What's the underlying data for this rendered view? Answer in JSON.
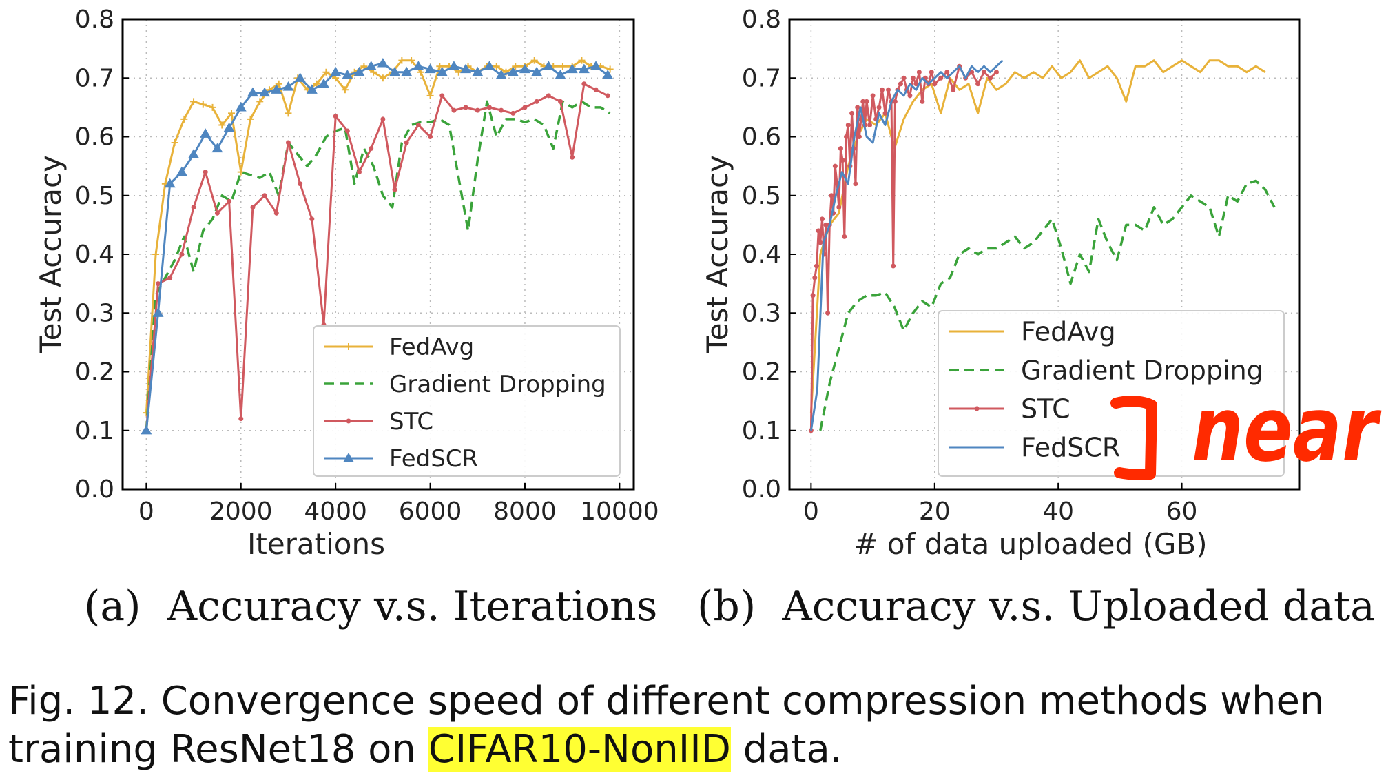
{
  "colors": {
    "fedavg": "#e8b23a",
    "graddrop": "#3aa33a",
    "stc": "#d0595f",
    "fedscr": "#4f86c0",
    "ink": "#ff2a00",
    "highlight": "#ffff33"
  },
  "chart_data": [
    {
      "type": "line",
      "xlabel": "Iterations",
      "ylabel": "Test Accuracy",
      "xlim": [
        -500,
        10300
      ],
      "ylim": [
        0.0,
        0.8
      ],
      "xticks": [
        "0",
        "2000",
        "4000",
        "6000",
        "8000",
        "10000"
      ],
      "xtick_values": [
        0,
        2000,
        4000,
        6000,
        8000,
        10000
      ],
      "yticks": [
        "0.0",
        "0.1",
        "0.2",
        "0.3",
        "0.4",
        "0.5",
        "0.6",
        "0.7",
        "0.8"
      ],
      "ytick_values": [
        0.0,
        0.1,
        0.2,
        0.3,
        0.4,
        0.5,
        0.6,
        0.7,
        0.8
      ],
      "grid": true,
      "legend_position": "lower-right",
      "series": [
        {
          "name": "FedAvg",
          "marker": "plus",
          "dash": false,
          "x": [
            0,
            200,
            400,
            600,
            800,
            1000,
            1200,
            1400,
            1600,
            1800,
            2000,
            2200,
            2400,
            2600,
            2800,
            3000,
            3200,
            3400,
            3600,
            3800,
            4000,
            4200,
            4400,
            4600,
            4800,
            5000,
            5200,
            5400,
            5600,
            5800,
            6000,
            6200,
            6400,
            6600,
            6800,
            7000,
            7200,
            7400,
            7600,
            7800,
            8000,
            8200,
            8400,
            8600,
            8800,
            9000,
            9200,
            9400,
            9600,
            9800
          ],
          "y": [
            0.13,
            0.4,
            0.52,
            0.59,
            0.63,
            0.66,
            0.655,
            0.65,
            0.62,
            0.64,
            0.54,
            0.63,
            0.66,
            0.68,
            0.69,
            0.64,
            0.7,
            0.68,
            0.69,
            0.71,
            0.7,
            0.68,
            0.71,
            0.72,
            0.71,
            0.7,
            0.71,
            0.73,
            0.73,
            0.71,
            0.67,
            0.72,
            0.72,
            0.71,
            0.72,
            0.71,
            0.72,
            0.72,
            0.71,
            0.72,
            0.72,
            0.73,
            0.72,
            0.72,
            0.72,
            0.72,
            0.73,
            0.72,
            0.72,
            0.715
          ]
        },
        {
          "name": "Gradient Dropping",
          "marker": "none",
          "dash": true,
          "x": [
            0,
            200,
            400,
            600,
            800,
            1000,
            1200,
            1400,
            1600,
            1800,
            2000,
            2200,
            2400,
            2600,
            2800,
            3000,
            3200,
            3400,
            3600,
            3800,
            4000,
            4200,
            4400,
            4600,
            4800,
            5000,
            5200,
            5400,
            5600,
            5800,
            6000,
            6200,
            6400,
            6600,
            6800,
            7000,
            7200,
            7400,
            7600,
            7800,
            8000,
            8200,
            8400,
            8600,
            8800,
            9000,
            9200,
            9400,
            9600,
            9800
          ],
          "y": [
            0.1,
            0.33,
            0.36,
            0.39,
            0.43,
            0.37,
            0.44,
            0.46,
            0.5,
            0.49,
            0.54,
            0.535,
            0.53,
            0.54,
            0.5,
            0.59,
            0.57,
            0.55,
            0.57,
            0.6,
            0.61,
            0.615,
            0.52,
            0.58,
            0.55,
            0.5,
            0.48,
            0.59,
            0.62,
            0.625,
            0.625,
            0.63,
            0.62,
            0.53,
            0.44,
            0.56,
            0.66,
            0.6,
            0.63,
            0.63,
            0.625,
            0.63,
            0.62,
            0.58,
            0.66,
            0.65,
            0.66,
            0.65,
            0.65,
            0.64
          ]
        },
        {
          "name": "STC",
          "marker": "dot",
          "dash": false,
          "x": [
            0,
            250,
            500,
            750,
            1000,
            1250,
            1500,
            1750,
            2000,
            2250,
            2500,
            2750,
            3000,
            3250,
            3500,
            3750,
            4000,
            4250,
            4500,
            4750,
            5000,
            5250,
            5500,
            5750,
            6000,
            6250,
            6500,
            6750,
            7000,
            7250,
            7500,
            7750,
            8000,
            8250,
            8500,
            8750,
            9000,
            9250,
            9500,
            9750
          ],
          "y": [
            0.1,
            0.35,
            0.36,
            0.4,
            0.48,
            0.54,
            0.47,
            0.49,
            0.12,
            0.48,
            0.5,
            0.47,
            0.59,
            0.52,
            0.46,
            0.28,
            0.635,
            0.61,
            0.54,
            0.58,
            0.63,
            0.51,
            0.59,
            0.62,
            0.6,
            0.67,
            0.645,
            0.65,
            0.645,
            0.65,
            0.645,
            0.64,
            0.65,
            0.66,
            0.67,
            0.66,
            0.565,
            0.69,
            0.68,
            0.67
          ]
        },
        {
          "name": "FedSCR",
          "marker": "triangle",
          "dash": false,
          "x": [
            0,
            250,
            500,
            750,
            1000,
            1250,
            1500,
            1750,
            2000,
            2250,
            2500,
            2750,
            3000,
            3250,
            3500,
            3750,
            4000,
            4250,
            4500,
            4750,
            5000,
            5250,
            5500,
            5750,
            6000,
            6250,
            6500,
            6750,
            7000,
            7250,
            7500,
            7750,
            8000,
            8250,
            8500,
            8750,
            9000,
            9250,
            9500,
            9750
          ],
          "y": [
            0.1,
            0.3,
            0.52,
            0.54,
            0.57,
            0.605,
            0.58,
            0.615,
            0.65,
            0.675,
            0.675,
            0.68,
            0.685,
            0.7,
            0.68,
            0.69,
            0.71,
            0.705,
            0.71,
            0.72,
            0.725,
            0.71,
            0.71,
            0.72,
            0.715,
            0.71,
            0.72,
            0.715,
            0.71,
            0.72,
            0.705,
            0.71,
            0.715,
            0.71,
            0.72,
            0.705,
            0.715,
            0.715,
            0.72,
            0.705
          ]
        }
      ]
    },
    {
      "type": "line",
      "xlabel": "# of data uploaded (GB)",
      "ylabel": "Test Accuracy",
      "xlim": [
        -3.5,
        79
      ],
      "ylim": [
        0.0,
        0.8
      ],
      "xticks": [
        "0",
        "20",
        "40",
        "60"
      ],
      "xtick_values": [
        0,
        20,
        40,
        60
      ],
      "yticks": [
        "0.0",
        "0.1",
        "0.2",
        "0.3",
        "0.4",
        "0.5",
        "0.6",
        "0.7",
        "0.8"
      ],
      "ytick_values": [
        0.0,
        0.1,
        0.2,
        0.3,
        0.4,
        0.5,
        0.6,
        0.7,
        0.8
      ],
      "grid": true,
      "legend_position": "lower-right",
      "series": [
        {
          "name": "FedAvg",
          "marker": "none",
          "dash": false,
          "x": [
            0,
            1.5,
            3,
            4.5,
            6,
            7.5,
            9,
            10.5,
            12,
            13.5,
            15,
            16.5,
            18,
            19.5,
            21,
            22.5,
            24,
            25.5,
            27,
            28.5,
            30,
            31.5,
            33,
            34.5,
            36,
            37.5,
            39,
            40.5,
            42,
            43.5,
            45,
            46.5,
            48,
            49.5,
            51,
            52.5,
            54,
            55.5,
            57,
            58.5,
            60,
            61.5,
            63,
            64.5,
            66,
            67.5,
            69,
            70.5,
            72,
            73.5
          ],
          "y": [
            0.13,
            0.4,
            0.45,
            0.47,
            0.55,
            0.6,
            0.63,
            0.62,
            0.64,
            0.58,
            0.63,
            0.66,
            0.68,
            0.69,
            0.64,
            0.7,
            0.68,
            0.69,
            0.64,
            0.7,
            0.68,
            0.69,
            0.71,
            0.7,
            0.71,
            0.7,
            0.72,
            0.7,
            0.71,
            0.73,
            0.7,
            0.71,
            0.72,
            0.7,
            0.66,
            0.72,
            0.72,
            0.73,
            0.71,
            0.72,
            0.73,
            0.72,
            0.71,
            0.73,
            0.73,
            0.72,
            0.72,
            0.71,
            0.72,
            0.71
          ]
        },
        {
          "name": "Gradient Dropping",
          "marker": "none",
          "dash": true,
          "x": [
            1.5,
            3,
            4.5,
            6,
            7.5,
            9,
            10.5,
            12,
            13.5,
            15,
            16.5,
            18,
            19.5,
            21,
            22.5,
            24,
            25.5,
            27,
            28.5,
            30,
            31.5,
            33,
            34.5,
            36,
            37.5,
            39,
            40.5,
            42,
            43.5,
            45,
            46.5,
            48,
            49.5,
            51,
            52.5,
            54,
            55.5,
            57,
            58.5,
            60,
            61.5,
            63,
            64.5,
            66,
            67.5,
            69,
            70.5,
            72,
            73.5,
            75
          ],
          "y": [
            0.1,
            0.18,
            0.24,
            0.3,
            0.32,
            0.33,
            0.33,
            0.335,
            0.31,
            0.27,
            0.3,
            0.32,
            0.31,
            0.35,
            0.36,
            0.4,
            0.41,
            0.4,
            0.41,
            0.41,
            0.42,
            0.43,
            0.41,
            0.42,
            0.44,
            0.46,
            0.41,
            0.35,
            0.4,
            0.37,
            0.46,
            0.42,
            0.39,
            0.45,
            0.45,
            0.44,
            0.48,
            0.45,
            0.46,
            0.48,
            0.5,
            0.49,
            0.48,
            0.43,
            0.5,
            0.49,
            0.52,
            0.525,
            0.51,
            0.48
          ]
        },
        {
          "name": "STC",
          "marker": "dot",
          "dash": false,
          "x": [
            0,
            0.3,
            0.6,
            0.9,
            1.2,
            1.5,
            1.8,
            2.1,
            2.4,
            2.7,
            3,
            3.3,
            3.6,
            3.9,
            4.2,
            4.5,
            4.8,
            5.1,
            5.4,
            5.7,
            6,
            6.3,
            6.6,
            6.9,
            7.2,
            7.5,
            7.8,
            8.1,
            8.4,
            8.7,
            9,
            9.5,
            10,
            10.5,
            11,
            11.5,
            12,
            12.5,
            13,
            13.3,
            13.6,
            14,
            14.5,
            15,
            15.5,
            16,
            16.5,
            17,
            17.5,
            18,
            18.5,
            19,
            19.5,
            20,
            21,
            22,
            23,
            24,
            25,
            26,
            27,
            28,
            29,
            30
          ],
          "y": [
            0.1,
            0.33,
            0.36,
            0.38,
            0.44,
            0.42,
            0.46,
            0.4,
            0.45,
            0.3,
            0.45,
            0.5,
            0.47,
            0.55,
            0.52,
            0.48,
            0.58,
            0.56,
            0.43,
            0.6,
            0.62,
            0.55,
            0.64,
            0.58,
            0.52,
            0.65,
            0.6,
            0.63,
            0.66,
            0.62,
            0.66,
            0.62,
            0.67,
            0.63,
            0.65,
            0.68,
            0.64,
            0.68,
            0.66,
            0.38,
            0.66,
            0.68,
            0.69,
            0.7,
            0.68,
            0.67,
            0.7,
            0.69,
            0.71,
            0.66,
            0.7,
            0.69,
            0.71,
            0.69,
            0.7,
            0.71,
            0.68,
            0.72,
            0.7,
            0.71,
            0.69,
            0.71,
            0.7,
            0.71
          ]
        },
        {
          "name": "FedSCR",
          "marker": "none",
          "dash": false,
          "x": [
            0,
            1,
            2,
            3,
            4,
            5,
            6,
            7,
            8,
            9,
            10,
            11,
            12,
            13,
            14,
            15,
            16,
            17,
            18,
            19,
            20,
            21,
            22,
            23,
            24,
            25,
            26,
            27,
            28,
            29,
            30,
            31
          ],
          "y": [
            0.1,
            0.17,
            0.42,
            0.45,
            0.5,
            0.54,
            0.52,
            0.6,
            0.65,
            0.6,
            0.59,
            0.64,
            0.62,
            0.66,
            0.68,
            0.67,
            0.69,
            0.68,
            0.7,
            0.69,
            0.7,
            0.71,
            0.7,
            0.71,
            0.72,
            0.7,
            0.72,
            0.71,
            0.72,
            0.71,
            0.72,
            0.73
          ]
        }
      ]
    }
  ],
  "subcaptions": {
    "a_label": "(a)",
    "a_text": "Accuracy v.s. Iterations",
    "b_label": "(b)",
    "b_text": "Accuracy v.s. Uploaded data"
  },
  "figure_caption": {
    "line1": "Fig. 12. Convergence speed of different compression methods when",
    "line2_prefix": "training ResNet18 on ",
    "line2_highlight": "CIFAR10-NonIID",
    "line2_suffix": " data."
  },
  "annotation": {
    "handwritten_text": "near"
  }
}
